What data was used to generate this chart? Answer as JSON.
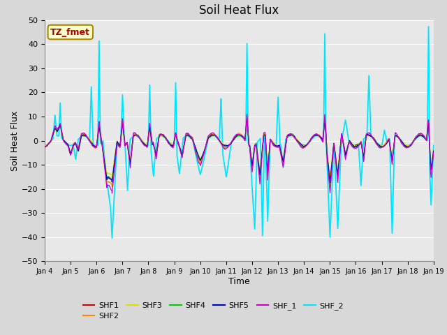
{
  "title": "Soil Heat Flux",
  "xlabel": "Time",
  "ylabel": "Soil Heat Flux",
  "ylim": [
    -50,
    50
  ],
  "yticks": [
    -50,
    -40,
    -30,
    -20,
    -10,
    0,
    10,
    20,
    30,
    40,
    50
  ],
  "xtick_labels": [
    "Jan 4",
    "Jan 5",
    "Jan 6",
    "Jan 7",
    "Jan 8",
    "Jan 9",
    "Jan 10",
    "Jan 11",
    "Jan 12",
    "Jan 13",
    "Jan 14",
    "Jan 15",
    "Jan 16",
    "Jan 17",
    "Jan 18",
    "Jan 19"
  ],
  "colors": {
    "SHF1": "#cc0000",
    "SHF2": "#ff8c00",
    "SHF3": "#dddd00",
    "SHF4": "#00cc00",
    "SHF5": "#0000cc",
    "SHF_1": "#cc00cc",
    "SHF_2": "#00e5ff"
  },
  "annotation_text": "TZ_fmet",
  "annotation_color": "#aa0000",
  "annotation_bg": "#ffffcc",
  "annotation_border": "#aa8800",
  "bg_color": "#e8e8e8",
  "grid_color": "#ffffff",
  "title_fontsize": 12,
  "axis_fontsize": 9,
  "tick_fontsize": 8
}
